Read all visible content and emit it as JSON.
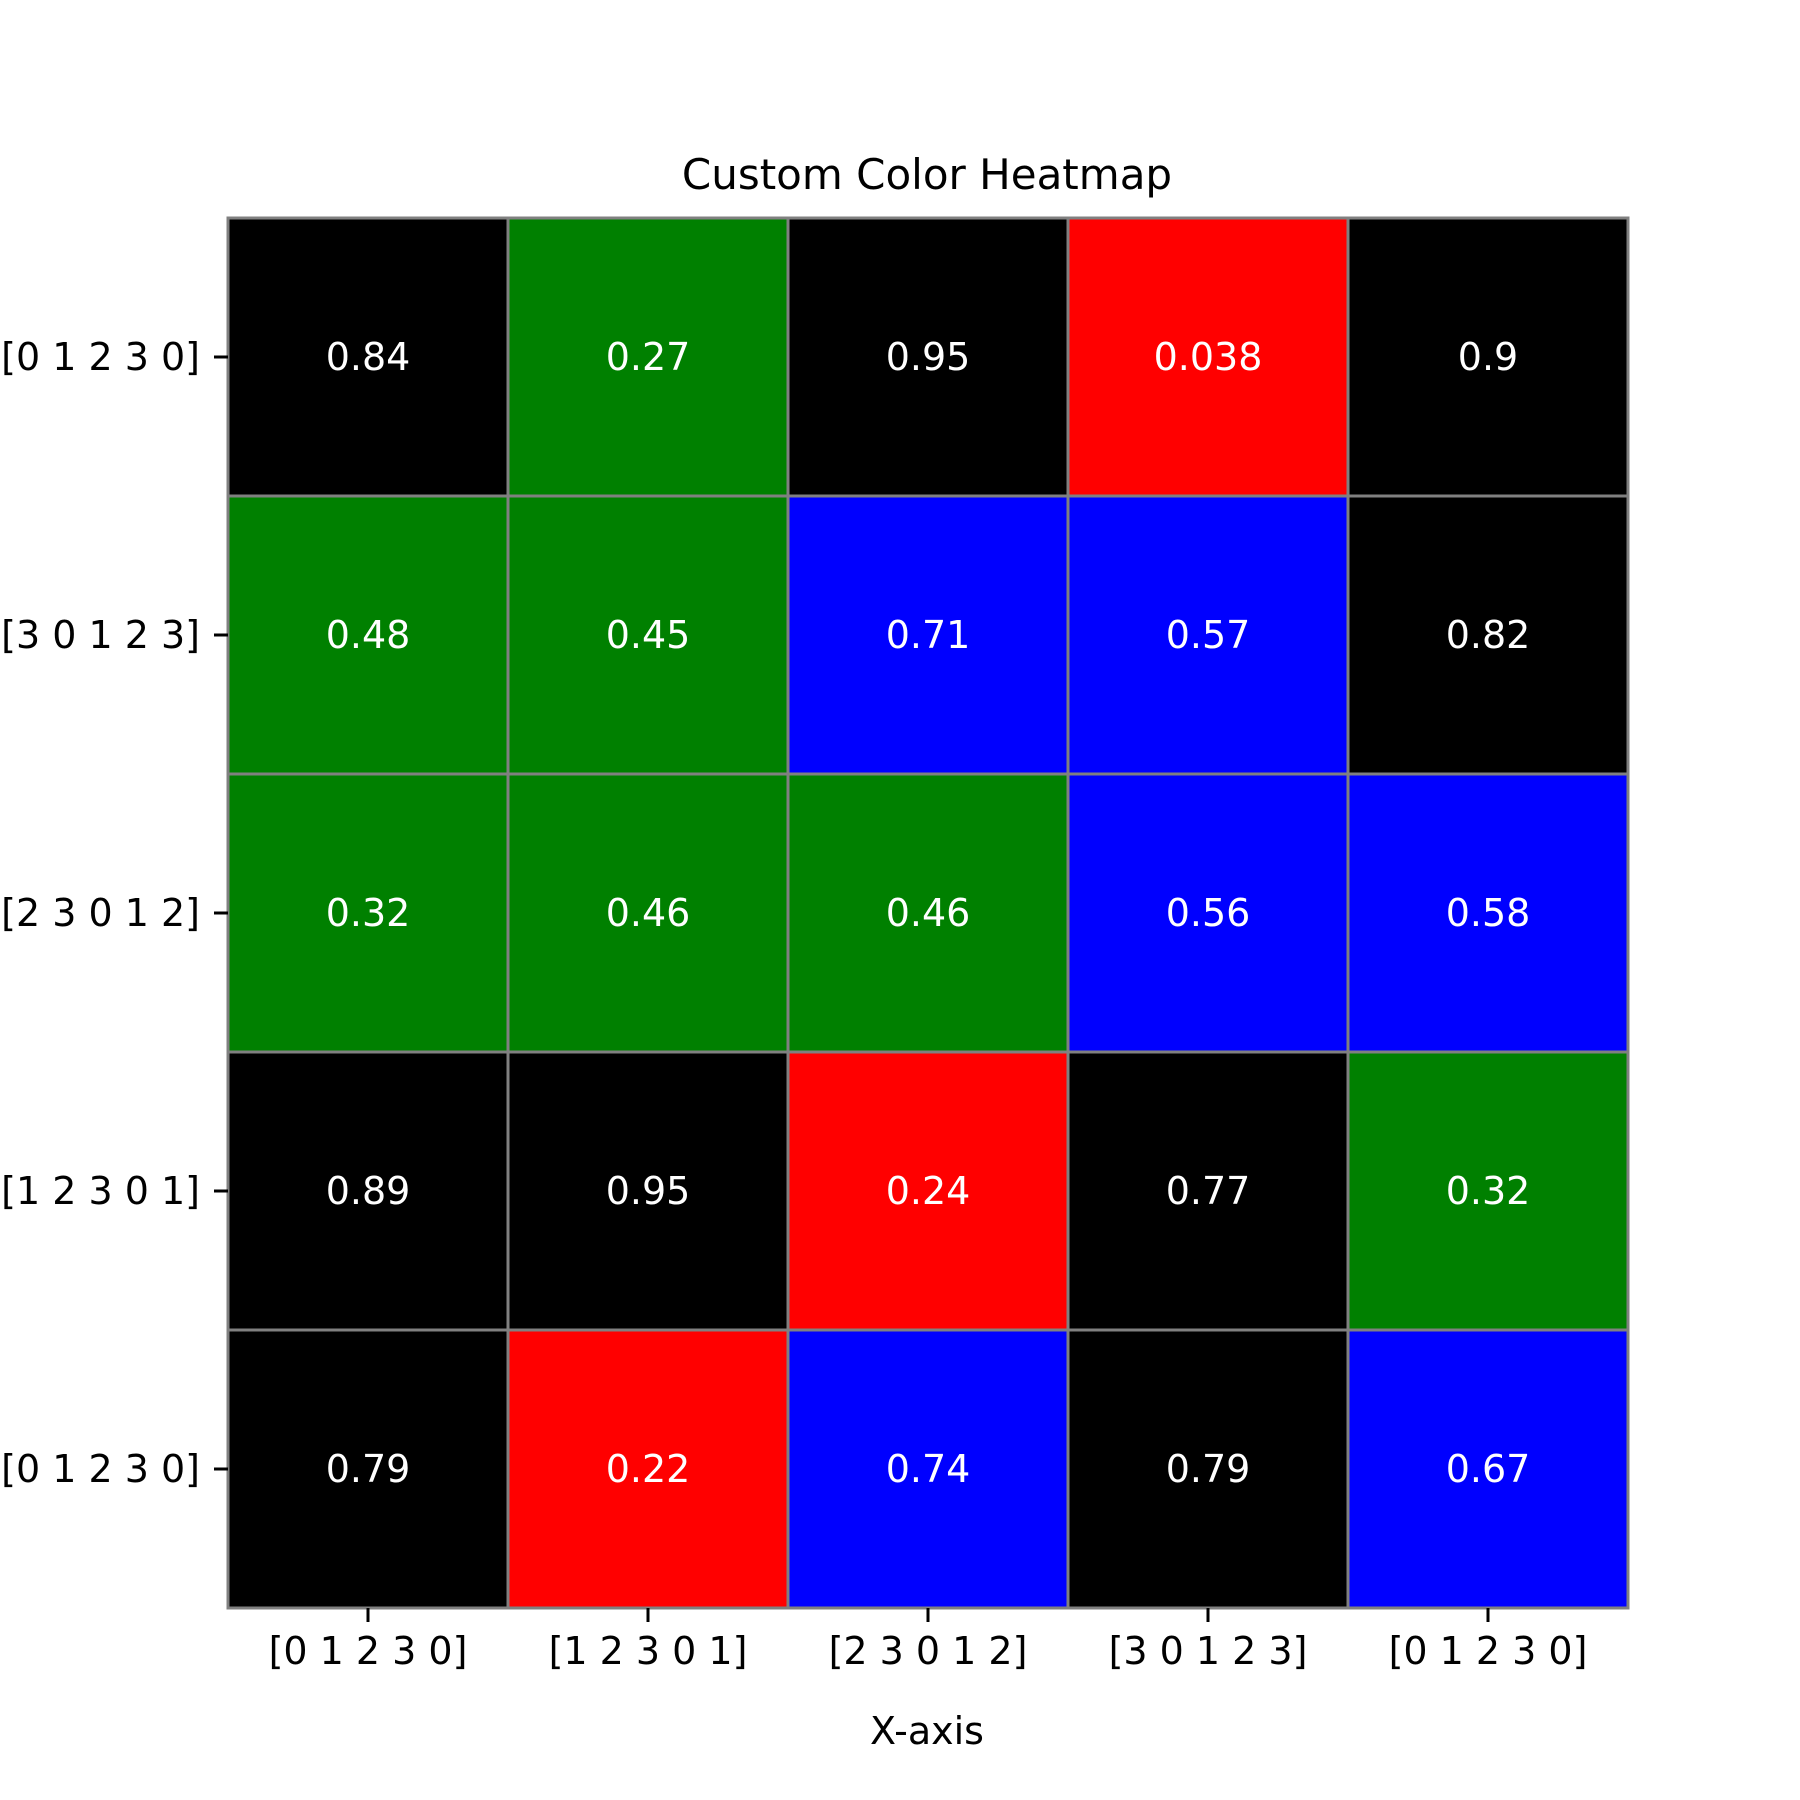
{
  "chart_data": {
    "type": "heatmap",
    "title": "Custom Color Heatmap",
    "xlabel": "X-axis",
    "ylabel": "",
    "x_tick_labels": [
      "[0 1 2 3 0]",
      "[1 2 3 0 1]",
      "[2 3 0 1 2]",
      "[3 0 1 2 3]",
      "[0 1 2 3 0]"
    ],
    "y_tick_labels": [
      "[0 1 2 3 0]",
      "[3 0 1 2 3]",
      "[2 3 0 1 2]",
      "[1 2 3 0 1]",
      "[0 1 2 3 0]"
    ],
    "values": [
      [
        0.84,
        0.27,
        0.95,
        0.038,
        0.9
      ],
      [
        0.48,
        0.45,
        0.71,
        0.57,
        0.82
      ],
      [
        0.32,
        0.46,
        0.46,
        0.56,
        0.58
      ],
      [
        0.89,
        0.95,
        0.24,
        0.77,
        0.32
      ],
      [
        0.79,
        0.22,
        0.74,
        0.79,
        0.67
      ]
    ],
    "value_labels": [
      [
        "0.84",
        "0.27",
        "0.95",
        "0.038",
        "0.9"
      ],
      [
        "0.48",
        "0.45",
        "0.71",
        "0.57",
        "0.82"
      ],
      [
        "0.32",
        "0.46",
        "0.46",
        "0.56",
        "0.58"
      ],
      [
        "0.89",
        "0.95",
        "0.24",
        "0.77",
        "0.32"
      ],
      [
        "0.79",
        "0.22",
        "0.74",
        "0.79",
        "0.67"
      ]
    ],
    "colormap": {
      "type": "discrete",
      "bins": [
        {
          "min": 0.0,
          "max": 0.25,
          "color": "#ff0000"
        },
        {
          "min": 0.25,
          "max": 0.5,
          "color": "#008000"
        },
        {
          "min": 0.5,
          "max": 0.75,
          "color": "#0000ff"
        },
        {
          "min": 0.75,
          "max": 1.0,
          "color": "#000000"
        }
      ]
    },
    "cell_edge_color": "#808080",
    "cell_text_color": "#ffffff",
    "grid": false,
    "legend": "none"
  }
}
